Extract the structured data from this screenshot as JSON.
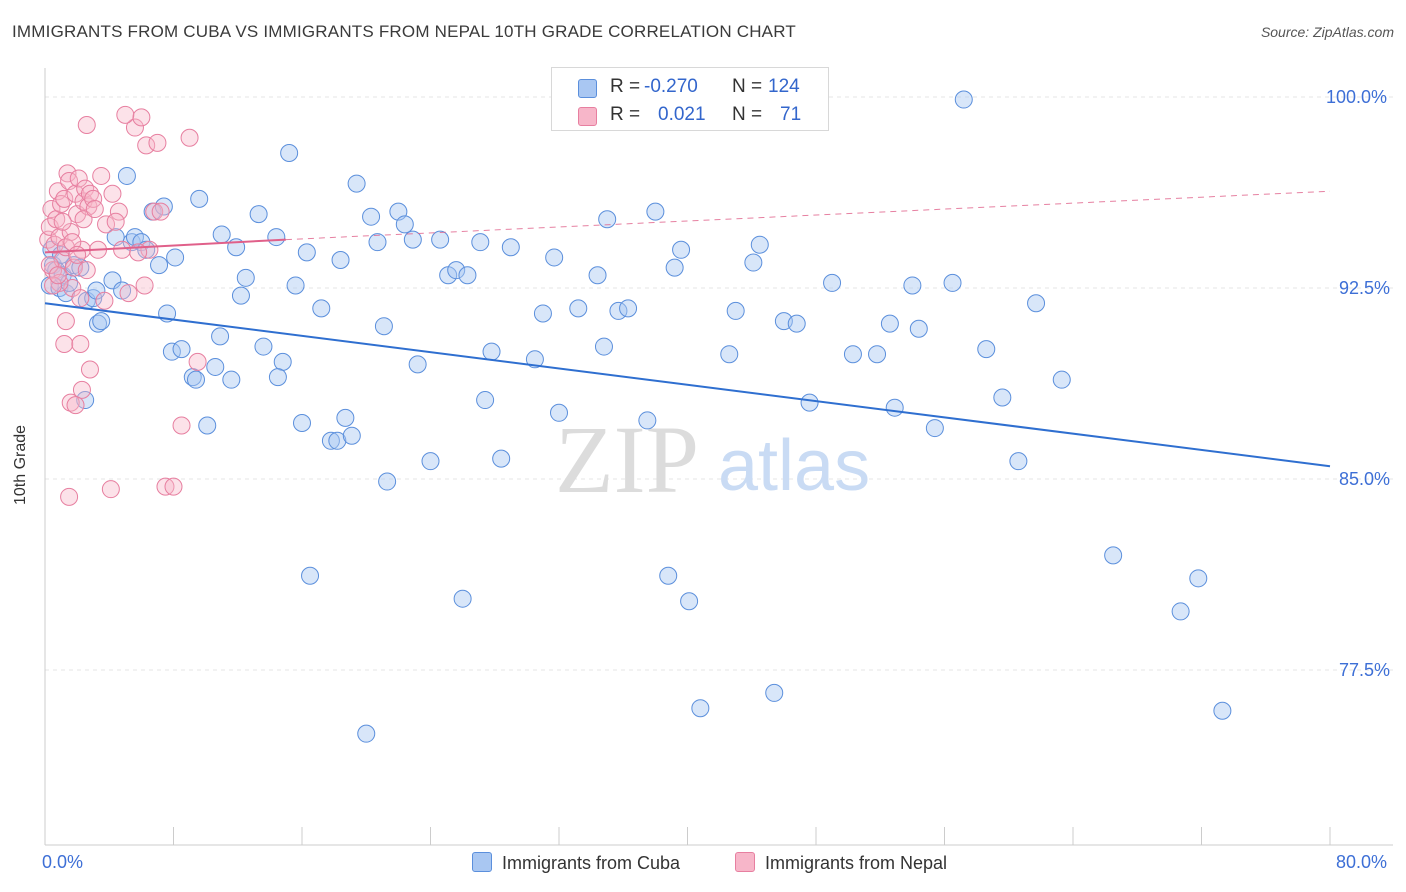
{
  "header": {
    "title": "IMMIGRANTS FROM CUBA VS IMMIGRANTS FROM NEPAL 10TH GRADE CORRELATION CHART",
    "source": "Source: ZipAtlas.com"
  },
  "legend": {
    "r_label": "R =",
    "n_label": "N =",
    "cuba": {
      "r": "-0.270",
      "n": "124"
    },
    "nepal": {
      "r": "0.021",
      "n": "71"
    }
  },
  "watermark": {
    "zip": "ZIP",
    "atlas": "atlas"
  },
  "colors": {
    "cuba_fill": "#a9c7f2",
    "cuba_stroke": "#5b8fdc",
    "cuba_line": "#2f6fd0",
    "nepal_fill": "#f7b6c9",
    "nepal_stroke": "#e77fa0",
    "nepal_line": "#e0608a",
    "tick_text": "#3d6fd6"
  },
  "chart_data": {
    "type": "scatter",
    "title": "IMMIGRANTS FROM CUBA VS IMMIGRANTS FROM NEPAL 10TH GRADE CORRELATION CHART",
    "xlabel": "",
    "ylabel": "10th Grade",
    "xlim": [
      0,
      80
    ],
    "ylim": [
      70,
      101
    ],
    "x_tick_labels": [
      "0.0%",
      "80.0%"
    ],
    "y_ticks": [
      77.5,
      85.0,
      92.5,
      100.0
    ],
    "y_tick_labels": [
      "77.5%",
      "85.0%",
      "92.5%",
      "100.0%"
    ],
    "grid": true,
    "legend_position": "bottom",
    "series": [
      {
        "name": "Immigrants from Cuba",
        "color": "#5b8fdc",
        "trend": {
          "x": [
            0,
            80
          ],
          "y": [
            91.9,
            85.5
          ]
        },
        "points": [
          [
            0.3,
            92.6
          ],
          [
            0.5,
            93.4
          ],
          [
            0.7,
            93.2
          ],
          [
            0.9,
            92.5
          ],
          [
            1.1,
            93.0
          ],
          [
            1.3,
            92.3
          ],
          [
            1.5,
            92.7
          ],
          [
            1.8,
            93.4
          ],
          [
            2.2,
            93.3
          ],
          [
            2.5,
            88.1
          ],
          [
            2.6,
            92.0
          ],
          [
            3.0,
            92.1
          ],
          [
            3.2,
            92.4
          ],
          [
            3.3,
            91.1
          ],
          [
            3.5,
            91.2
          ],
          [
            4.2,
            92.8
          ],
          [
            4.4,
            94.5
          ],
          [
            4.8,
            92.4
          ],
          [
            5.1,
            96.9
          ],
          [
            5.4,
            94.3
          ],
          [
            5.6,
            94.5
          ],
          [
            6.0,
            94.3
          ],
          [
            6.3,
            94.0
          ],
          [
            6.7,
            95.5
          ],
          [
            7.1,
            93.4
          ],
          [
            7.4,
            95.7
          ],
          [
            7.6,
            91.5
          ],
          [
            7.9,
            90.0
          ],
          [
            8.1,
            93.7
          ],
          [
            8.5,
            90.1
          ],
          [
            9.2,
            89.0
          ],
          [
            9.4,
            88.9
          ],
          [
            9.6,
            96.0
          ],
          [
            10.1,
            87.1
          ],
          [
            10.6,
            89.4
          ],
          [
            10.9,
            90.6
          ],
          [
            11.0,
            94.6
          ],
          [
            11.6,
            88.9
          ],
          [
            11.9,
            94.1
          ],
          [
            12.2,
            92.2
          ],
          [
            12.5,
            92.9
          ],
          [
            13.3,
            95.4
          ],
          [
            13.6,
            90.2
          ],
          [
            14.4,
            94.5
          ],
          [
            14.8,
            89.6
          ],
          [
            15.2,
            97.8
          ],
          [
            15.6,
            92.6
          ],
          [
            16.0,
            87.2
          ],
          [
            16.3,
            93.9
          ],
          [
            16.5,
            81.2
          ],
          [
            17.2,
            91.7
          ],
          [
            17.8,
            86.5
          ],
          [
            18.2,
            86.5
          ],
          [
            18.4,
            93.6
          ],
          [
            18.7,
            87.4
          ],
          [
            19.1,
            86.7
          ],
          [
            19.4,
            96.6
          ],
          [
            20.0,
            75.0
          ],
          [
            20.3,
            95.3
          ],
          [
            20.7,
            94.3
          ],
          [
            21.1,
            91.0
          ],
          [
            21.3,
            84.9
          ],
          [
            22.0,
            95.5
          ],
          [
            22.4,
            95.0
          ],
          [
            22.9,
            94.4
          ],
          [
            23.2,
            89.5
          ],
          [
            24.0,
            85.7
          ],
          [
            24.6,
            94.4
          ],
          [
            25.1,
            93.0
          ],
          [
            25.6,
            93.2
          ],
          [
            26.0,
            80.3
          ],
          [
            26.3,
            93.0
          ],
          [
            27.1,
            94.3
          ],
          [
            27.4,
            88.1
          ],
          [
            27.8,
            90.0
          ],
          [
            28.4,
            85.8
          ],
          [
            29.0,
            94.1
          ],
          [
            30.5,
            89.7
          ],
          [
            31.0,
            91.5
          ],
          [
            31.7,
            93.7
          ],
          [
            32.0,
            87.6
          ],
          [
            33.2,
            91.7
          ],
          [
            34.4,
            93.0
          ],
          [
            34.8,
            90.2
          ],
          [
            35.0,
            95.2
          ],
          [
            35.7,
            91.6
          ],
          [
            36.3,
            91.7
          ],
          [
            37.5,
            87.3
          ],
          [
            38.0,
            95.5
          ],
          [
            38.8,
            81.2
          ],
          [
            39.2,
            93.3
          ],
          [
            39.6,
            94.0
          ],
          [
            40.1,
            80.2
          ],
          [
            40.8,
            76.0
          ],
          [
            42.6,
            89.9
          ],
          [
            43.0,
            91.6
          ],
          [
            44.1,
            93.5
          ],
          [
            44.5,
            94.2
          ],
          [
            45.4,
            76.6
          ],
          [
            46.0,
            91.2
          ],
          [
            46.8,
            91.1
          ],
          [
            47.6,
            88.0
          ],
          [
            49.0,
            92.7
          ],
          [
            50.3,
            89.9
          ],
          [
            51.8,
            89.9
          ],
          [
            52.6,
            91.1
          ],
          [
            52.9,
            87.8
          ],
          [
            54.0,
            92.6
          ],
          [
            54.4,
            90.9
          ],
          [
            55.4,
            87.0
          ],
          [
            56.5,
            92.7
          ],
          [
            57.2,
            99.9
          ],
          [
            58.6,
            90.1
          ],
          [
            59.6,
            88.2
          ],
          [
            60.6,
            85.7
          ],
          [
            61.7,
            91.9
          ],
          [
            63.3,
            88.9
          ],
          [
            66.5,
            82.0
          ],
          [
            70.7,
            79.8
          ],
          [
            71.8,
            81.1
          ],
          [
            73.3,
            75.9
          ],
          [
            0.4,
            94.0
          ],
          [
            1.0,
            93.8
          ],
          [
            14.5,
            89.0
          ]
        ]
      },
      {
        "name": "Immigrants from Nepal",
        "color": "#e77fa0",
        "trend": {
          "x": [
            0,
            15
          ],
          "y": [
            93.9,
            94.4
          ],
          "dashed_extension": {
            "x": [
              15,
              80
            ],
            "y": [
              94.4,
              96.3
            ]
          }
        },
        "points": [
          [
            0.2,
            94.4
          ],
          [
            0.3,
            94.9
          ],
          [
            0.4,
            95.6
          ],
          [
            0.5,
            93.2
          ],
          [
            0.6,
            94.2
          ],
          [
            0.7,
            95.2
          ],
          [
            0.8,
            96.3
          ],
          [
            0.9,
            94.5
          ],
          [
            1.0,
            95.8
          ],
          [
            1.1,
            93.6
          ],
          [
            1.2,
            96.0
          ],
          [
            1.3,
            91.2
          ],
          [
            1.4,
            97.0
          ],
          [
            1.5,
            96.7
          ],
          [
            1.6,
            94.7
          ],
          [
            1.7,
            92.5
          ],
          [
            1.8,
            93.3
          ],
          [
            1.9,
            96.2
          ],
          [
            2.0,
            95.4
          ],
          [
            2.1,
            96.8
          ],
          [
            2.2,
            92.1
          ],
          [
            2.3,
            94.0
          ],
          [
            2.4,
            95.9
          ],
          [
            2.5,
            96.4
          ],
          [
            2.6,
            93.2
          ],
          [
            2.7,
            95.7
          ],
          [
            2.8,
            96.2
          ],
          [
            3.0,
            96.0
          ],
          [
            3.3,
            94.0
          ],
          [
            3.5,
            96.9
          ],
          [
            3.8,
            95.0
          ],
          [
            4.2,
            96.2
          ],
          [
            4.6,
            95.5
          ],
          [
            4.8,
            94.0
          ],
          [
            5.2,
            92.3
          ],
          [
            5.6,
            98.8
          ],
          [
            6.0,
            99.2
          ],
          [
            6.5,
            94.0
          ],
          [
            6.8,
            95.5
          ],
          [
            7.2,
            95.5
          ],
          [
            7.5,
            84.7
          ],
          [
            8.0,
            84.7
          ],
          [
            8.5,
            87.1
          ],
          [
            9.0,
            98.4
          ],
          [
            1.2,
            90.3
          ],
          [
            1.6,
            88.0
          ],
          [
            2.3,
            88.5
          ],
          [
            2.8,
            89.3
          ],
          [
            3.7,
            92.0
          ],
          [
            4.1,
            84.6
          ],
          [
            1.5,
            84.3
          ],
          [
            1.9,
            87.9
          ],
          [
            2.2,
            90.3
          ],
          [
            0.9,
            92.7
          ],
          [
            1.1,
            95.1
          ],
          [
            2.6,
            98.9
          ],
          [
            5.0,
            99.3
          ],
          [
            6.3,
            98.1
          ],
          [
            7.0,
            98.2
          ],
          [
            9.5,
            89.6
          ],
          [
            0.3,
            93.4
          ],
          [
            0.5,
            92.6
          ],
          [
            0.8,
            93.0
          ],
          [
            1.3,
            94.1
          ],
          [
            1.7,
            94.3
          ],
          [
            2.0,
            93.8
          ],
          [
            2.4,
            95.2
          ],
          [
            3.1,
            95.6
          ],
          [
            4.4,
            95.1
          ],
          [
            5.8,
            93.9
          ],
          [
            6.2,
            92.6
          ]
        ]
      }
    ]
  },
  "axis": {
    "x_left": "0.0%",
    "x_right": "80.0%",
    "y_label": "10th Grade",
    "y_ticks": [
      "100.0%",
      "92.5%",
      "85.0%",
      "77.5%"
    ]
  },
  "bottom_legend": {
    "cuba": "Immigrants from Cuba",
    "nepal": "Immigrants from Nepal"
  }
}
